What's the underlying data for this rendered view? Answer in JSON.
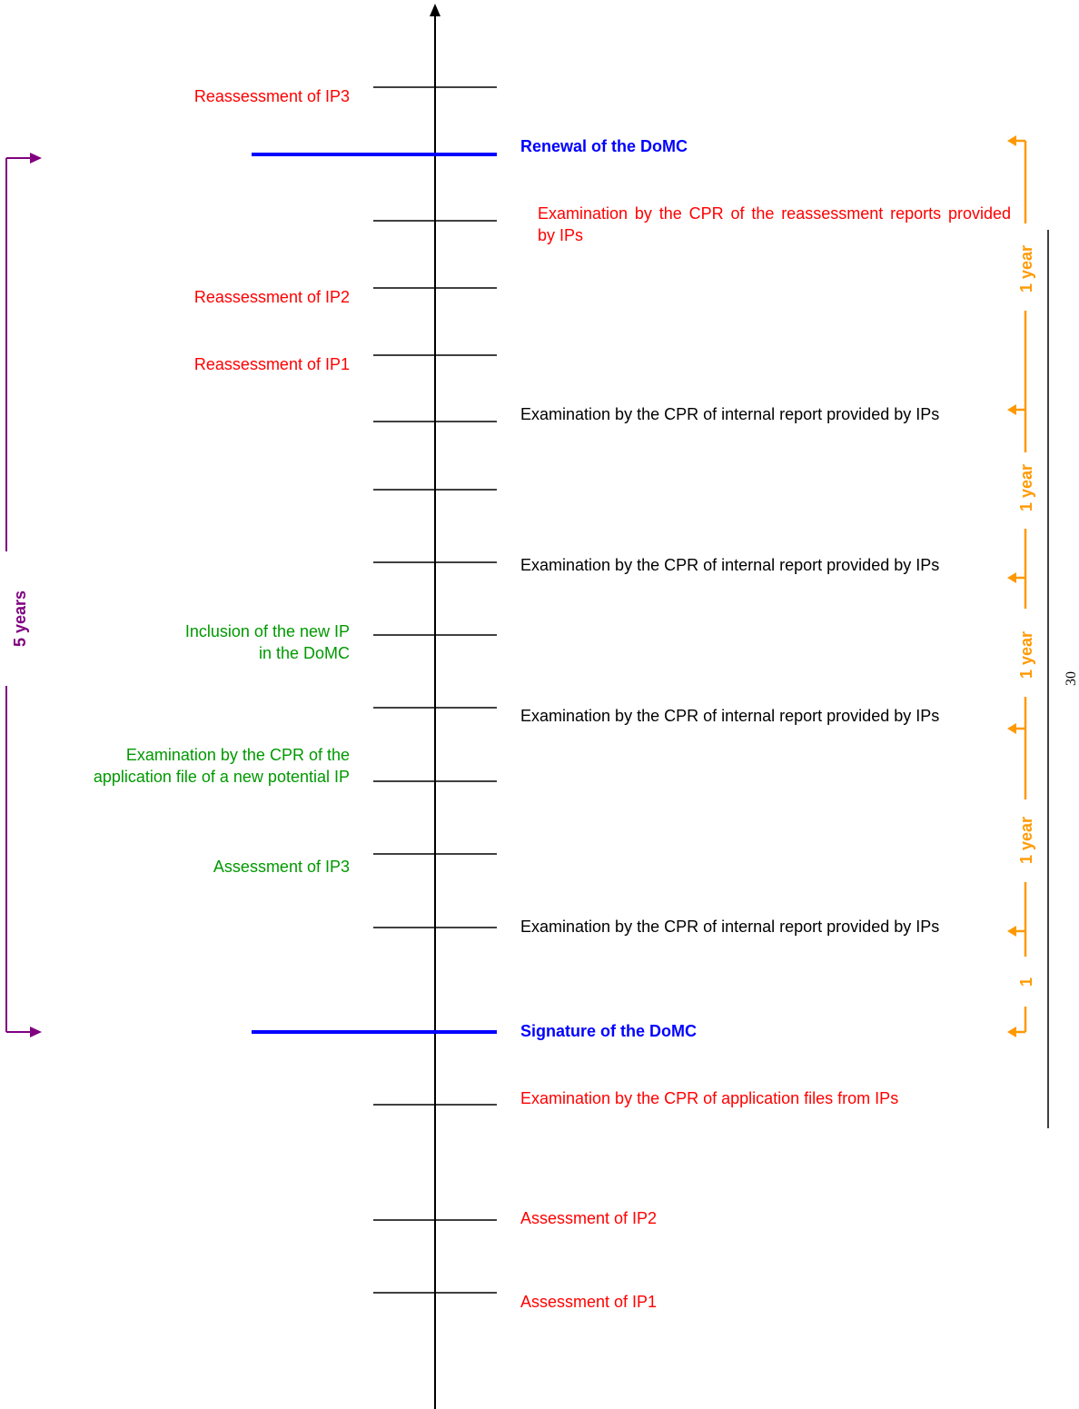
{
  "timeline": {
    "left_labels": [
      {
        "id": "reassess-ip3",
        "text": "Reassessment of IP3",
        "color": "#ff0000"
      },
      {
        "id": "reassess-ip2",
        "text": "Reassessment of IP2",
        "color": "#ff0000"
      },
      {
        "id": "reassess-ip1",
        "text": "Reassessment of IP1",
        "color": "#ff0000"
      },
      {
        "id": "inclusion-new-ip",
        "text": "Inclusion of the new IP in the DoMC",
        "color": "#009900"
      },
      {
        "id": "exam-new-ip",
        "text": "Examination by the CPR of the application file of a new potential IP",
        "color": "#009900"
      },
      {
        "id": "assess-ip3",
        "text": "Assessment of IP3",
        "color": "#009900"
      }
    ],
    "right_labels": {
      "renewal": "Renewal of the DoMC",
      "exam_reassessment": "Examination by the CPR of the reassessment reports provided by IPs",
      "exam_internal_1": "Examination by the CPR of internal report provided by IPs",
      "exam_internal_2": "Examination by the CPR of internal report provided by IPs",
      "exam_internal_3": "Examination by the CPR of internal report provided by IPs",
      "exam_internal_4": "Examination by the CPR of internal report provided by IPs",
      "signature": "Signature of the DoMC",
      "exam_application": "Examination by the CPR of application files from IPs",
      "assess_ip2": "Assessment of IP2",
      "assess_ip1": "Assessment of IP1"
    },
    "intervals": {
      "year_1": "1 year",
      "year_2": "1 year",
      "year_3": "1 year",
      "year_4": "1 year",
      "partial": "1",
      "five_years": "5 years"
    },
    "page_number": "30"
  },
  "colors": {
    "red": "#ff0000",
    "green": "#009900",
    "blue": "#0000ff",
    "orange": "#ff9900",
    "purple": "#800080",
    "black": "#000000"
  }
}
